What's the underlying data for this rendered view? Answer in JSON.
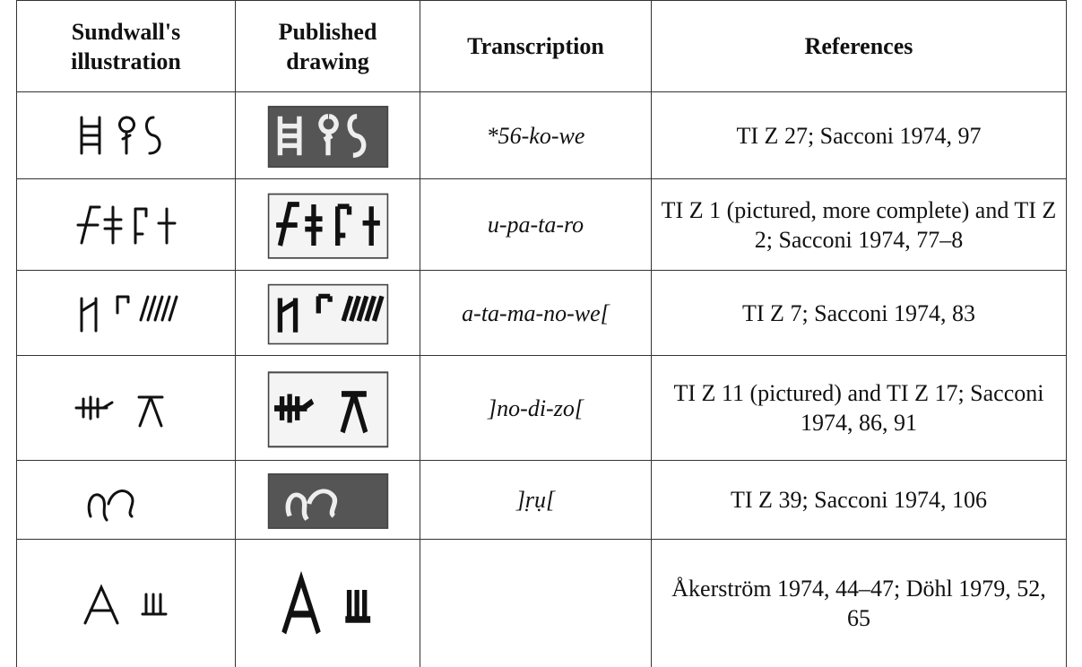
{
  "table": {
    "headers": [
      "Sundwall's illustration",
      "Published drawing",
      "Transcription",
      "References"
    ],
    "rows": [
      {
        "transcription": "*56-ko-we",
        "references": "TI Z 27; Sacconi 1974, 97"
      },
      {
        "transcription": "u-pa-ta-ro",
        "references": "TI Z 1 (pictured, more complete) and TI Z 2; Sacconi 1974, 77–8"
      },
      {
        "transcription": "a-ta-ma-no-we[",
        "references": "TI Z 7; Sacconi 1974, 83"
      },
      {
        "transcription": "]no-di-zo[",
        "references": "TI Z 11 (pictured) and TI Z 17; Sacconi 1974, 86, 91"
      },
      {
        "transcription": "]ṛụ[",
        "references": "TI Z 39; Sacconi 1974, 106"
      },
      {
        "references": "Åkerström 1974, 44–47; Döhl 1979, 52, 65"
      }
    ]
  }
}
